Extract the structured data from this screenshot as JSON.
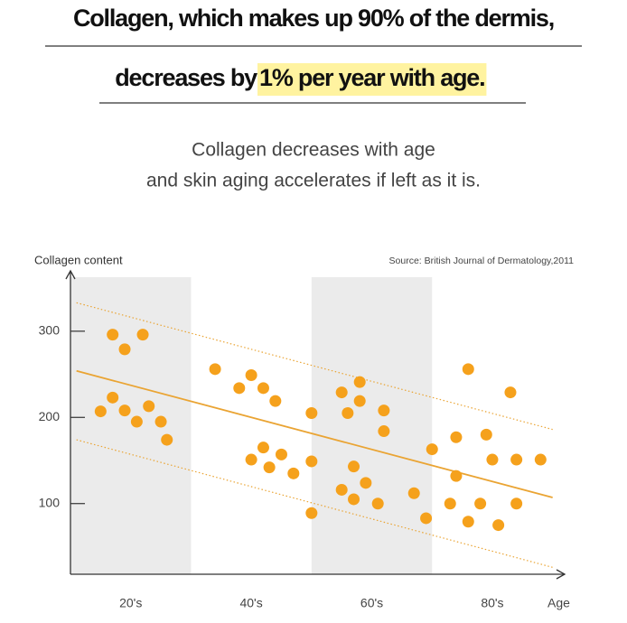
{
  "header": {
    "title_line1": "Collagen, which makes up 90% of the dermis,",
    "title_line2": "decreases by ",
    "title_highlight": "1% per year with age.",
    "subtitle_line1": "Collagen decreases with age",
    "subtitle_line2": "and skin aging accelerates if left as it is."
  },
  "chart_data": {
    "type": "scatter",
    "y_label": "Collagen content",
    "x_label": "Age",
    "source": "Source: British Journal of Dermatology,2011",
    "x": [
      22,
      24,
      27,
      20,
      22,
      24,
      26,
      28,
      30,
      31,
      39,
      43,
      45,
      47,
      49,
      45,
      47,
      48,
      50,
      52,
      55,
      55,
      55,
      60,
      61,
      63,
      63,
      62,
      60,
      62,
      64,
      66,
      67,
      67,
      72,
      74,
      75,
      78,
      79,
      79,
      81,
      81,
      83,
      84,
      85,
      86,
      88,
      89,
      89,
      93
    ],
    "values": [
      296,
      279,
      296,
      207,
      223,
      208,
      195,
      213,
      195,
      174,
      256,
      234,
      249,
      234,
      219,
      151,
      165,
      142,
      157,
      135,
      205,
      149,
      89,
      229,
      205,
      219,
      241,
      143,
      116,
      105,
      124,
      100,
      208,
      184,
      112,
      83,
      163,
      100,
      132,
      177,
      256,
      79,
      100,
      180,
      151,
      75,
      229,
      151,
      100,
      151
    ],
    "color": "#f5a11c",
    "trend": {
      "x": [
        16,
        95
      ],
      "y": [
        254,
        107
      ],
      "color": "#eaa433"
    },
    "band_upper": {
      "x": [
        16,
        95
      ],
      "y": [
        333,
        186
      ]
    },
    "band_lower": {
      "x": [
        16,
        95
      ],
      "y": [
        174,
        26
      ]
    },
    "shaded_bands": [
      [
        15,
        35
      ],
      [
        55,
        75
      ]
    ],
    "shade_color": "#ebebeb",
    "xlim": [
      15,
      97
    ],
    "ylim": [
      18,
      370
    ],
    "xticks": [
      {
        "value": 25,
        "label": "20's"
      },
      {
        "value": 45,
        "label": "40's"
      },
      {
        "value": 65,
        "label": "60's"
      },
      {
        "value": 85,
        "label": "80's"
      }
    ],
    "yticks": [
      100,
      200,
      300
    ]
  }
}
